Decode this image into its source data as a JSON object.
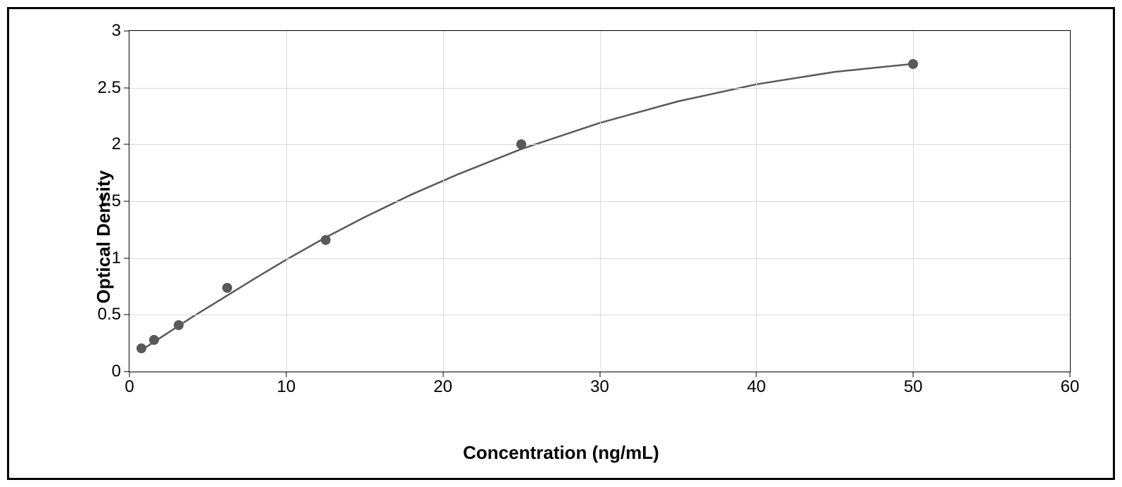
{
  "chart": {
    "type": "scatter-with-curve",
    "background_color": "#ffffff",
    "outer_border_color": "#000000",
    "outer_border_width": 3,
    "plot_border_color": "#000000",
    "plot_border_width": 1,
    "grid_color": "#d9d9d9",
    "grid_width": 1,
    "curve_color": "#595959",
    "curve_width": 2.5,
    "point_color": "#595959",
    "point_radius": 7,
    "xlabel": "Concentration (ng/mL)",
    "ylabel": "Optical Density",
    "xlabel_fontsize": 26,
    "ylabel_fontsize": 26,
    "tick_fontsize": 24,
    "xlim": [
      0,
      60
    ],
    "ylim": [
      0,
      3
    ],
    "xticks": [
      0,
      10,
      20,
      30,
      40,
      50,
      60
    ],
    "yticks": [
      0,
      0.5,
      1,
      1.5,
      2,
      2.5,
      3
    ],
    "xtick_labels": [
      "0",
      "10",
      "20",
      "30",
      "40",
      "50",
      "60"
    ],
    "ytick_labels": [
      "0",
      "0.5",
      "1",
      "1.5",
      "2",
      "2.5",
      "3"
    ],
    "data_points": [
      {
        "x": 0.78,
        "y": 0.205
      },
      {
        "x": 1.56,
        "y": 0.28
      },
      {
        "x": 3.12,
        "y": 0.41
      },
      {
        "x": 6.25,
        "y": 0.74
      },
      {
        "x": 12.5,
        "y": 1.16
      },
      {
        "x": 25.0,
        "y": 2.0
      },
      {
        "x": 50.0,
        "y": 2.71
      }
    ],
    "curve_points": [
      {
        "x": 0.78,
        "y": 0.19
      },
      {
        "x": 2,
        "y": 0.3
      },
      {
        "x": 4,
        "y": 0.48
      },
      {
        "x": 6,
        "y": 0.65
      },
      {
        "x": 8,
        "y": 0.82
      },
      {
        "x": 10,
        "y": 0.985
      },
      {
        "x": 12.5,
        "y": 1.18
      },
      {
        "x": 15,
        "y": 1.36
      },
      {
        "x": 18,
        "y": 1.56
      },
      {
        "x": 21,
        "y": 1.74
      },
      {
        "x": 25,
        "y": 1.96
      },
      {
        "x": 30,
        "y": 2.19
      },
      {
        "x": 35,
        "y": 2.38
      },
      {
        "x": 40,
        "y": 2.53
      },
      {
        "x": 45,
        "y": 2.64
      },
      {
        "x": 50,
        "y": 2.71
      }
    ]
  }
}
